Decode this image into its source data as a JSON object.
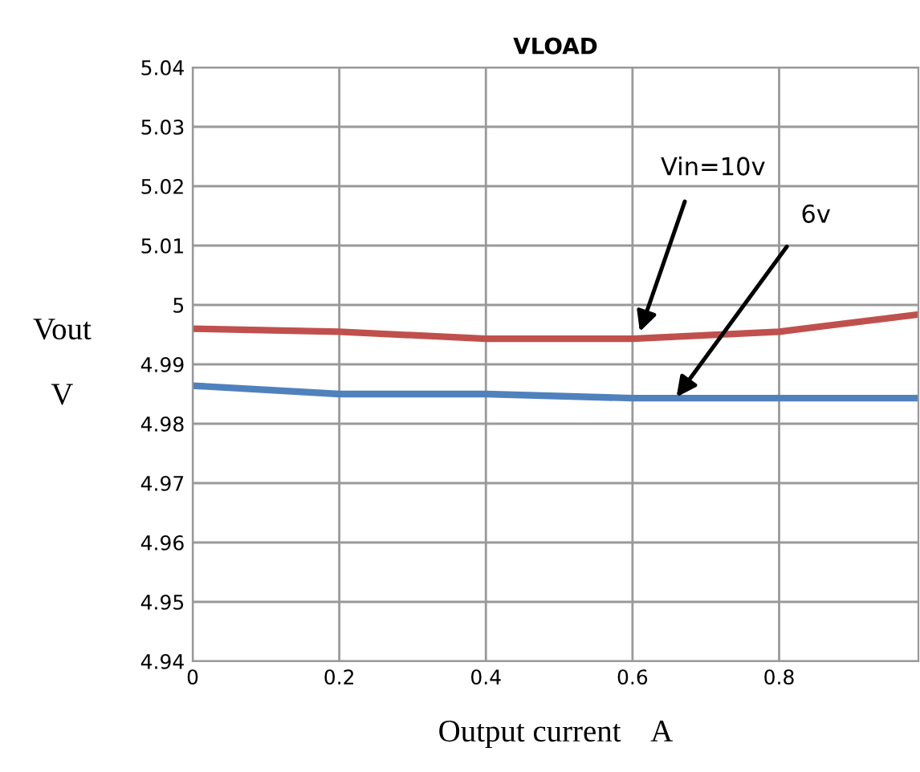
{
  "chart_data": {
    "type": "line",
    "title": "VLOAD",
    "xlabel": "Output current    A",
    "ylabel": "Vout\n\nV",
    "x": [
      0,
      0.2,
      0.4,
      0.6,
      0.8,
      0.99
    ],
    "series": [
      {
        "color": "#c0504d",
        "values": [
          4.996,
          4.9955,
          4.9943,
          4.9943,
          4.9955,
          4.9984
        ]
      },
      {
        "color": "#4f81bd",
        "values": [
          4.9864,
          4.985,
          4.985,
          4.9843,
          4.9843,
          4.9843
        ]
      }
    ],
    "xlim": [
      0,
      0.99
    ],
    "xticks": [
      0,
      0.2,
      0.4,
      0.6,
      0.8
    ],
    "ylim": [
      4.94,
      5.04
    ],
    "yticks": [
      4.94,
      4.95,
      4.96,
      4.97,
      4.98,
      4.99,
      5,
      5.01,
      5.02,
      5.03,
      5.04
    ],
    "grid": true,
    "legend": false,
    "marker": "none",
    "line_style": "solid",
    "annotations": [
      {
        "text": "Vin=10v",
        "x": 0.61,
        "y": 4.9955
      },
      {
        "text": "6v",
        "x": 0.66,
        "y": 4.9845
      }
    ]
  }
}
